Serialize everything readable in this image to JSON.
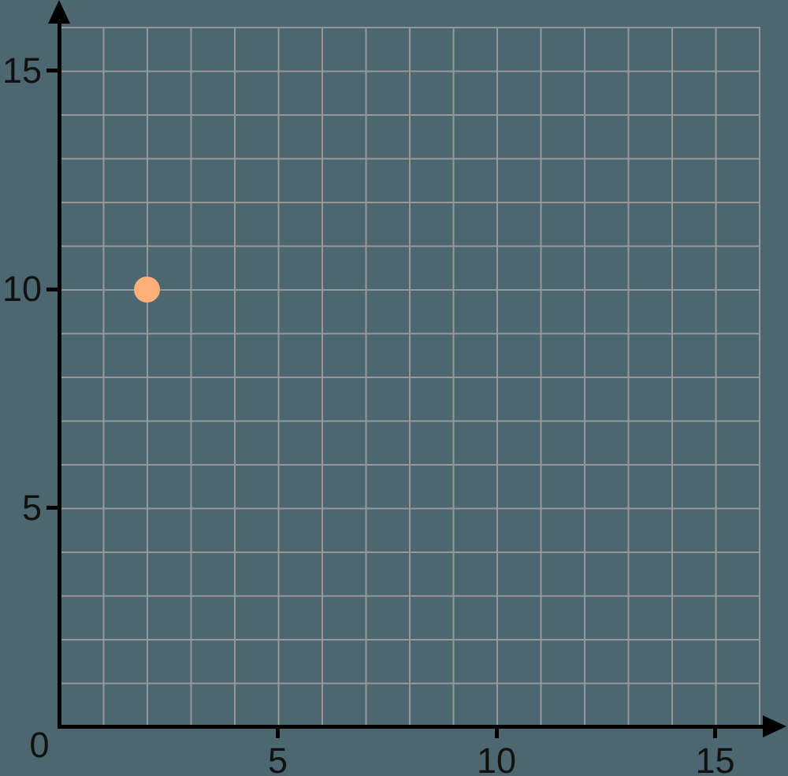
{
  "chart_data": {
    "type": "scatter",
    "title": "",
    "points": [
      {
        "x": 2,
        "y": 10
      }
    ],
    "x_axis": {
      "label": "",
      "ticks": [
        5,
        10,
        15
      ],
      "range": [
        0,
        16
      ],
      "gridline_step": 1
    },
    "y_axis": {
      "label": "",
      "ticks": [
        5,
        10,
        15
      ],
      "range": [
        0,
        16
      ],
      "gridline_step": 1
    },
    "origin_label": "0",
    "grid": "on",
    "legend": "none",
    "colors": {
      "background": "#4D6770",
      "gridline": "#989898",
      "axis": "#000000",
      "tick_label": "#111111",
      "point": "#FFB07A"
    }
  }
}
